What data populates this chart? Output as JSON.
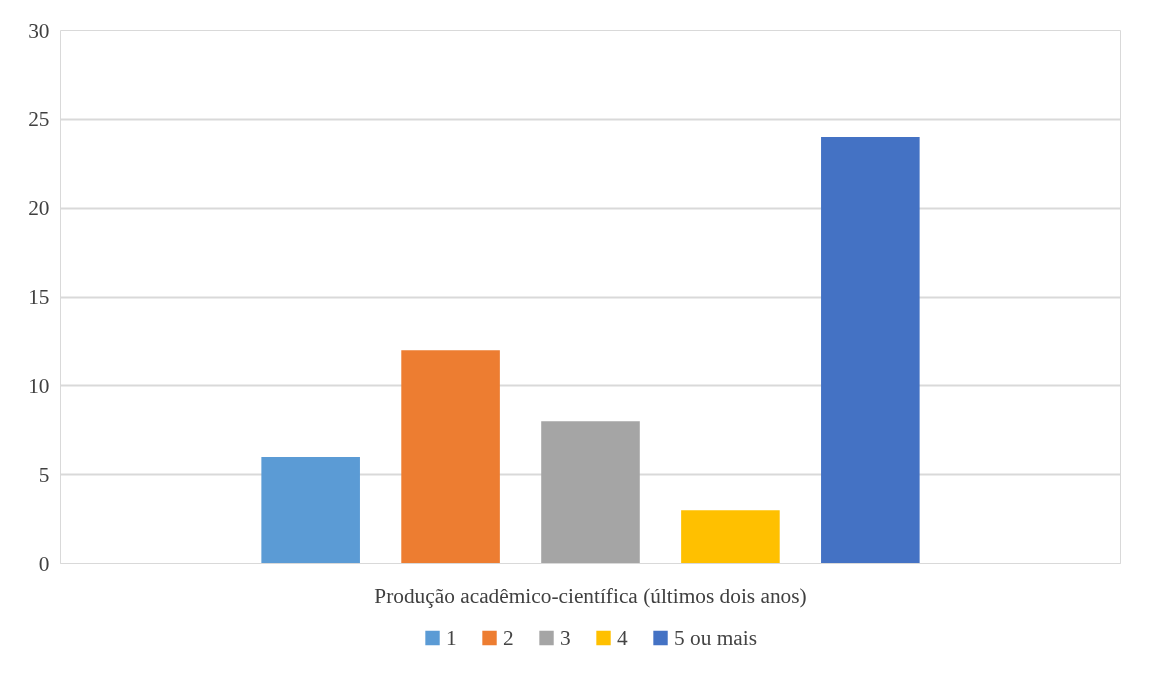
{
  "chart_data": {
    "type": "bar",
    "categories": [
      "Produção acadêmico-científica (últimos dois anos)"
    ],
    "series": [
      {
        "name": "1",
        "color": "#5b9bd5",
        "values": [
          6
        ]
      },
      {
        "name": "2",
        "color": "#ed7d31",
        "values": [
          12
        ]
      },
      {
        "name": "3",
        "color": "#a5a5a5",
        "values": [
          8
        ]
      },
      {
        "name": "4",
        "color": "#ffc000",
        "values": [
          3
        ]
      },
      {
        "name": "5 ou mais",
        "color": "#4472c4",
        "values": [
          24
        ]
      }
    ],
    "ylim": [
      0,
      30
    ],
    "yticks": [
      0,
      5,
      10,
      15,
      20,
      25,
      30
    ],
    "grid": "y",
    "legend": "bottom"
  }
}
